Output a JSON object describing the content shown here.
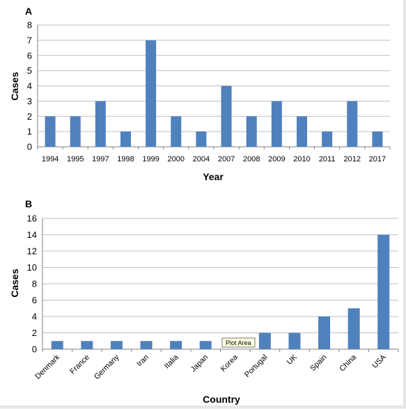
{
  "chart_data": [
    {
      "type": "bar",
      "panel_label": "A",
      "categories": [
        "1994",
        "1995",
        "1997",
        "1998",
        "1999",
        "2000",
        "2004",
        "2007",
        "2008",
        "2009",
        "2010",
        "2011",
        "2012",
        "2017"
      ],
      "values": [
        2,
        2,
        3,
        1,
        7,
        2,
        1,
        4,
        2,
        3,
        2,
        1,
        3,
        1
      ],
      "xlabel": "Year",
      "ylabel": "Cases",
      "ylim": [
        0,
        8
      ],
      "yticks": [
        "0",
        "1",
        "2",
        "3",
        "4",
        "5",
        "6",
        "7",
        "8"
      ],
      "grid": true,
      "color": "#4f81bd"
    },
    {
      "type": "bar",
      "panel_label": "B",
      "categories": [
        "Denmark",
        "France",
        "Germany",
        "Iran",
        "Italia",
        "Japan",
        "Korea",
        "Portugal",
        "UK",
        "Spain",
        "China",
        "USA"
      ],
      "values": [
        1,
        1,
        1,
        1,
        1,
        1,
        0,
        2,
        2,
        4,
        5,
        14
      ],
      "xlabel": "Country",
      "ylabel": "Cases",
      "ylim": [
        0,
        16
      ],
      "yticks": [
        "0",
        "2",
        "4",
        "6",
        "8",
        "10",
        "12",
        "14",
        "16"
      ],
      "grid": true,
      "color": "#4f81bd"
    }
  ],
  "tooltip": {
    "text": "Plot Area"
  }
}
